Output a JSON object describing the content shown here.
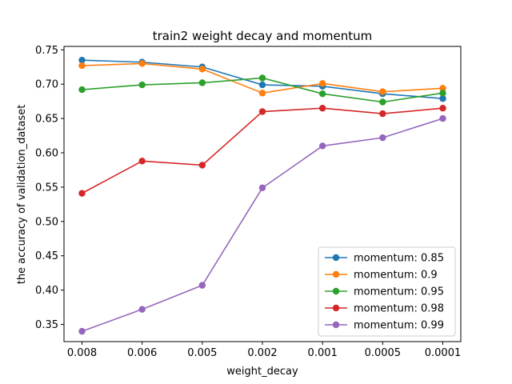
{
  "chart_data": {
    "type": "line",
    "title": "train2 weight decay and momentum",
    "xlabel": "weight_decay",
    "ylabel": "the accuracy of validation_dataset",
    "categories": [
      "0.008",
      "0.006",
      "0.005",
      "0.002",
      "0.001",
      "0.0005",
      "0.0001"
    ],
    "y_ticks": [
      "0.35",
      "0.40",
      "0.45",
      "0.50",
      "0.55",
      "0.60",
      "0.65",
      "0.70",
      "0.75"
    ],
    "ylim": [
      0.325,
      0.755
    ],
    "grid": false,
    "legend_position": "lower-right",
    "series": [
      {
        "name": "momentum: 0.85",
        "color": "#1f77b4",
        "values": [
          0.735,
          0.732,
          0.725,
          0.699,
          0.697,
          0.686,
          0.679
        ]
      },
      {
        "name": "momentum: 0.9",
        "color": "#ff7f0e",
        "values": [
          0.727,
          0.73,
          0.722,
          0.687,
          0.701,
          0.689,
          0.694
        ]
      },
      {
        "name": "momentum: 0.95",
        "color": "#2ca02c",
        "values": [
          0.692,
          0.699,
          0.702,
          0.709,
          0.686,
          0.674,
          0.687
        ]
      },
      {
        "name": "momentum: 0.98",
        "color": "#d62728",
        "values": [
          0.541,
          0.588,
          0.582,
          0.66,
          0.665,
          0.657,
          0.665
        ]
      },
      {
        "name": "momentum: 0.99",
        "color": "#9467bd",
        "values": [
          0.34,
          0.372,
          0.407,
          0.549,
          0.61,
          0.622,
          0.65
        ]
      }
    ]
  }
}
